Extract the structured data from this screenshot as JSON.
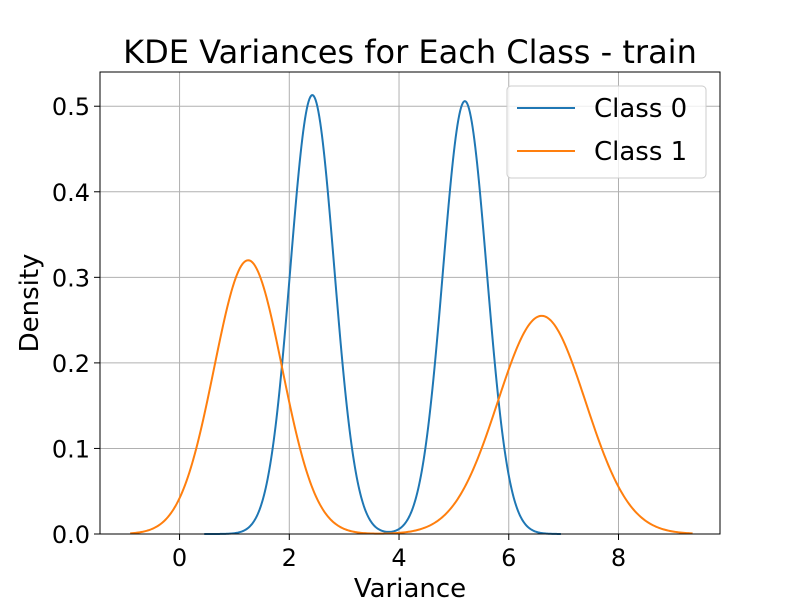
{
  "chart_data": {
    "type": "line",
    "title": "KDE Variances for Each Class - train",
    "xlabel": "Variance",
    "ylabel": "Density",
    "xlim": [
      -1.45,
      9.85
    ],
    "ylim": [
      0.0,
      0.54
    ],
    "xticks": [
      0,
      2,
      4,
      6,
      8
    ],
    "xtick_labels": [
      "0",
      "2",
      "4",
      "6",
      "8"
    ],
    "yticks": [
      0.0,
      0.1,
      0.2,
      0.3,
      0.4,
      0.5
    ],
    "ytick_labels": [
      "0.0",
      "0.1",
      "0.2",
      "0.3",
      "0.4",
      "0.5"
    ],
    "grid": true,
    "legend_position": "top-right",
    "series": [
      {
        "name": "Class 0",
        "color": "#1f77b4",
        "x_range": [
          0.45,
          6.95
        ],
        "components": [
          {
            "mean": 2.42,
            "sd": 0.4,
            "peak": 0.513
          },
          {
            "mean": 5.2,
            "sd": 0.4,
            "peak": 0.506
          }
        ]
      },
      {
        "name": "Class 1",
        "color": "#ff7f0e",
        "x_range": [
          -0.9,
          9.35
        ],
        "components": [
          {
            "mean": 1.25,
            "sd": 0.62,
            "peak": 0.32
          },
          {
            "mean": 6.6,
            "sd": 0.8,
            "peak": 0.255
          }
        ]
      }
    ]
  }
}
